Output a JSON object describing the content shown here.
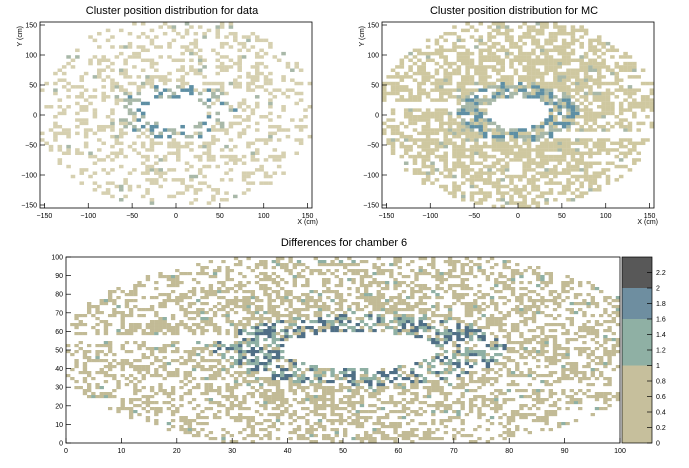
{
  "chart_data": [
    {
      "type": "heatmap",
      "title": "Cluster position distribution for data",
      "xlabel": "X (cm)",
      "ylabel": "Y (cm)",
      "xlim": [
        -155,
        155
      ],
      "ylim": [
        -155,
        155
      ],
      "xticks": [
        "−150",
        "−100",
        "−50",
        "0",
        "50",
        "100",
        "150"
      ],
      "yticks": [
        "−150",
        "−100",
        "−50",
        "0",
        "50",
        "100",
        "150"
      ],
      "xtick_values": [
        -150,
        -100,
        -50,
        0,
        50,
        100,
        150
      ],
      "ytick_values": [
        -150,
        -100,
        -50,
        0,
        50,
        100,
        150
      ],
      "occupancy": "sparse",
      "hole_center": [
        0,
        5
      ],
      "hole_radius": [
        36,
        24
      ],
      "outer_radius": 160,
      "ring_hotspot": true,
      "bands": [],
      "colors": {
        "low": "#d6d0b0",
        "mid": "#a8b8a8",
        "high": "#5e8fa4"
      }
    },
    {
      "type": "heatmap",
      "title": "Cluster position distribution for MC",
      "xlabel": "X (cm)",
      "ylabel": "Y (cm)",
      "xlim": [
        -155,
        155
      ],
      "ylim": [
        -155,
        155
      ],
      "xticks": [
        "−150",
        "−100",
        "−50",
        "0",
        "50",
        "100",
        "150"
      ],
      "yticks": [
        "−150",
        "−100",
        "−50",
        "0",
        "50",
        "100",
        "150"
      ],
      "xtick_values": [
        -150,
        -100,
        -50,
        0,
        50,
        100,
        150
      ],
      "ytick_values": [
        -150,
        -100,
        -50,
        0,
        50,
        100,
        150
      ],
      "occupancy": "dense",
      "hole_center": [
        0,
        5
      ],
      "hole_radius": [
        36,
        26
      ],
      "outer_radius": 160,
      "ring_hotspot": true,
      "bands": [
        {
          "x_from": -155,
          "x_to": -70,
          "y_from": 13,
          "y_to": 21
        },
        {
          "x_from": 40,
          "x_to": 155,
          "y_from": -36,
          "y_to": -28
        }
      ],
      "colors": {
        "low": "#cfc8a0",
        "mid": "#a8b8a8",
        "high": "#5e8fa4"
      }
    },
    {
      "type": "heatmap",
      "title": "Differences for chamber 6",
      "xlim": [
        0,
        100
      ],
      "ylim": [
        0,
        100
      ],
      "xticks": [
        "0",
        "10",
        "20",
        "30",
        "40",
        "50",
        "60",
        "70",
        "80",
        "90",
        "100"
      ],
      "yticks": [
        "0",
        "10",
        "20",
        "30",
        "40",
        "50",
        "60",
        "70",
        "80",
        "90",
        "100"
      ],
      "xtick_values": [
        0,
        10,
        20,
        30,
        40,
        50,
        60,
        70,
        80,
        90,
        100
      ],
      "ytick_values": [
        0,
        10,
        20,
        30,
        40,
        50,
        60,
        70,
        80,
        90,
        100
      ],
      "occupancy": "medium",
      "hole_center": [
        53,
        50
      ],
      "hole_radius": [
        14,
        10
      ],
      "outer_radius": 55,
      "ring_hotspot": true,
      "bands": [
        {
          "x_from": 0,
          "x_to": 30,
          "y_from": 55,
          "y_to": 58
        },
        {
          "x_from": 75,
          "x_to": 100,
          "y_from": 29,
          "y_to": 31
        }
      ],
      "colors": {
        "low": "#c2bb96",
        "mid": "#8fb0a4",
        "high": "#4f6f86"
      },
      "colorbar": {
        "labels": [
          "0",
          "0.2",
          "0.4",
          "0.6",
          "0.8",
          "1",
          "1.2",
          "1.4",
          "1.6",
          "1.8",
          "2",
          "2.2"
        ],
        "values": [
          0,
          0.2,
          0.4,
          0.6,
          0.8,
          1,
          1.2,
          1.4,
          1.6,
          1.8,
          2,
          2.2
        ],
        "max": 2.4,
        "segments": [
          {
            "from": 0,
            "to": 1.0,
            "color": "#c6bf9c"
          },
          {
            "from": 1.0,
            "to": 1.6,
            "color": "#8fb0a4"
          },
          {
            "from": 1.6,
            "to": 2.0,
            "color": "#6e8ea0"
          },
          {
            "from": 2.0,
            "to": 2.4,
            "color": "#585858"
          }
        ]
      }
    }
  ]
}
